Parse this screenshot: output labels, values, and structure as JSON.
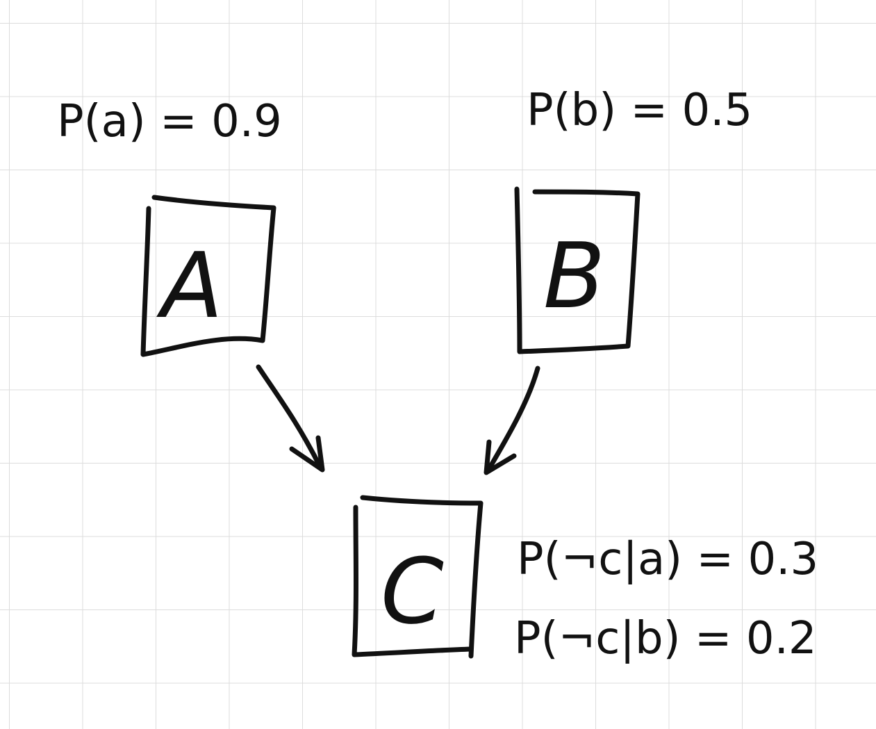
{
  "diagram": {
    "kind": "bayesian-network",
    "priors": {
      "a": "P(a) = 0.9",
      "b": "P(b) = 0.5"
    },
    "nodes": {
      "A": "A",
      "B": "B",
      "C": "C"
    },
    "conditionals": {
      "c_given_a": "P(¬c|a) = 0.3",
      "c_given_b": "P(¬c|b) = 0.2"
    },
    "edges": [
      {
        "from": "A",
        "to": "C"
      },
      {
        "from": "B",
        "to": "C"
      }
    ],
    "colors": {
      "ink": "#111111",
      "grid": "#dcdcdc",
      "paper": "#ffffff"
    }
  }
}
